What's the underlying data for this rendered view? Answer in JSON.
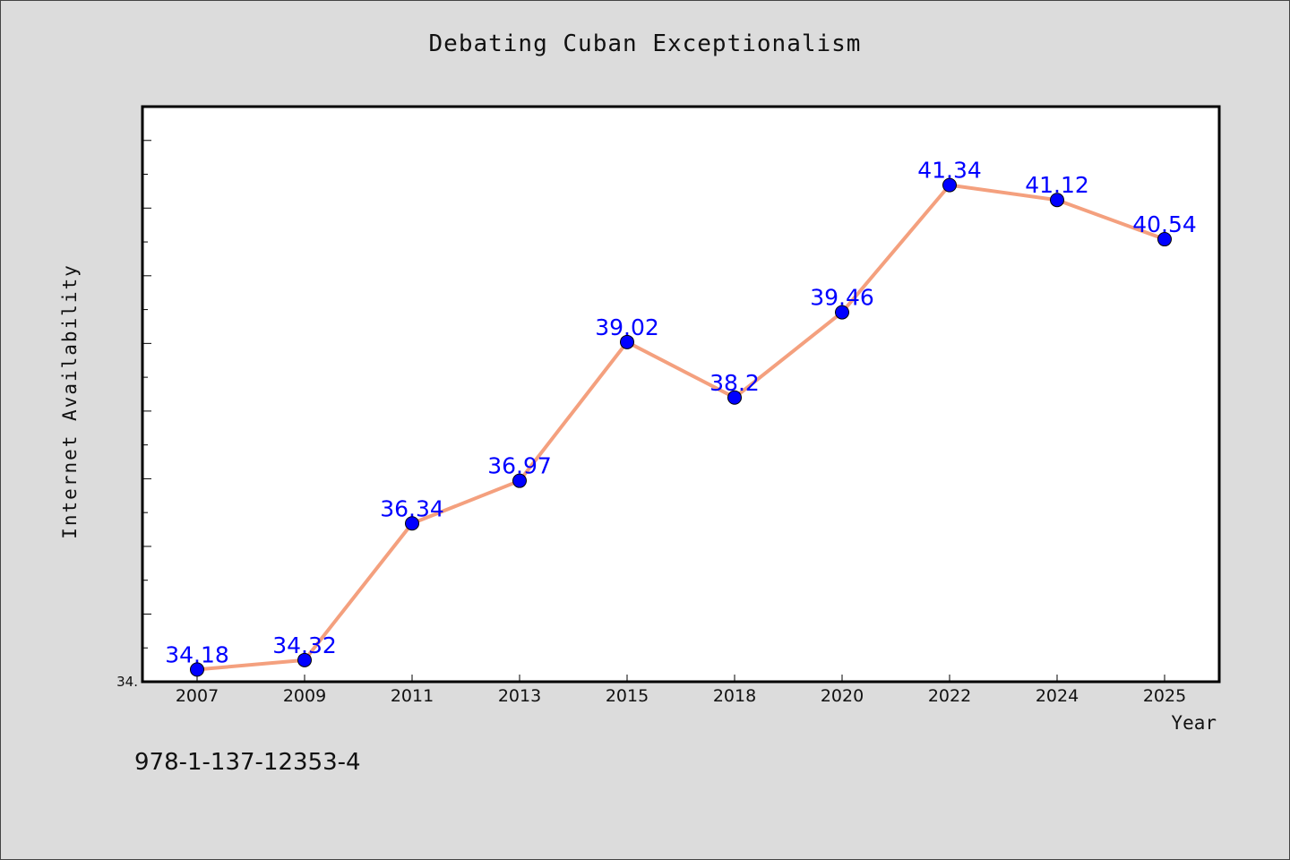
{
  "chart_data": {
    "type": "line",
    "title": "Debating Cuban Exceptionalism",
    "xlabel": "Year",
    "ylabel": "Internet Availability",
    "categories": [
      "2007",
      "2009",
      "2011",
      "2013",
      "2015",
      "2018",
      "2020",
      "2022",
      "2024",
      "2025"
    ],
    "series": [
      {
        "values": [
          34.18,
          34.32,
          36.34,
          36.97,
          39.02,
          38.2,
          39.46,
          41.34,
          41.12,
          40.54
        ],
        "data_labels": [
          "34.18",
          "34.32",
          "36.34",
          "36.97",
          "39.02",
          "38.2",
          "39.46",
          "41.34",
          "41.12",
          "40.54"
        ]
      }
    ],
    "y_tick_label": "34.",
    "ylim": [
      34.0,
      42.5
    ],
    "grid": false,
    "line_color": "#f4a07e",
    "marker_color": "#0000ff",
    "label_color": "#0000ff"
  },
  "footer": {
    "isbn": "978-1-137-12353-4"
  }
}
